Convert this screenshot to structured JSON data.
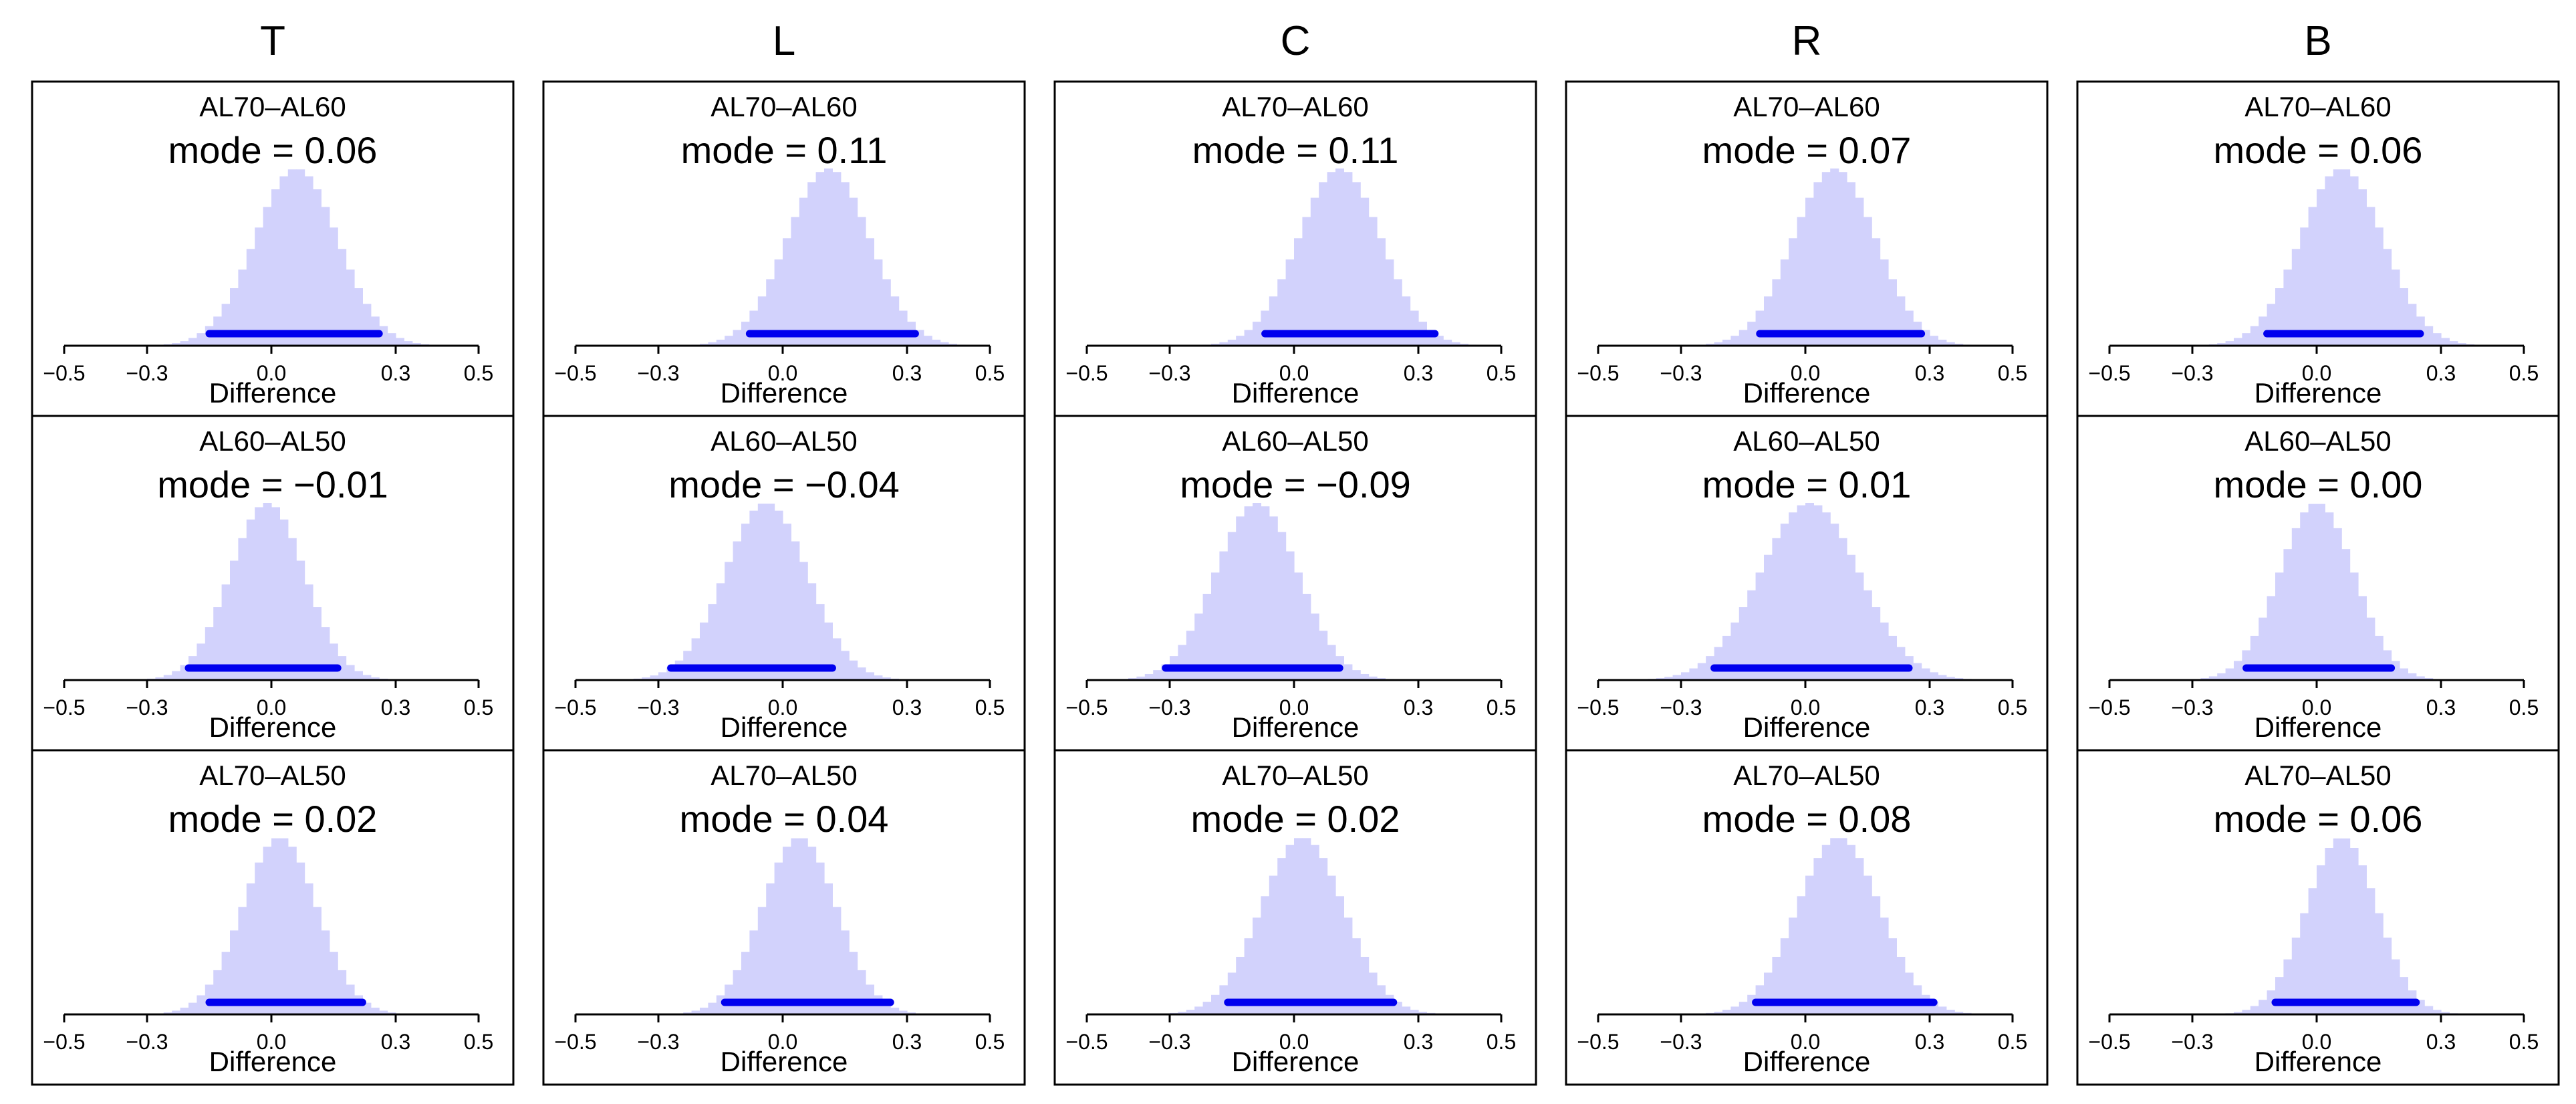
{
  "figure": {
    "columns": [
      "T",
      "L",
      "C",
      "R",
      "B"
    ],
    "rows": [
      "AL70–AL60",
      "AL60–AL50",
      "AL70–AL50"
    ]
  },
  "chart_data": [
    {
      "type": "bar",
      "column": "T",
      "comparison": "AL70–AL60",
      "mode_label": "mode = 0.06",
      "mode": 0.06,
      "interval": [
        -0.15,
        0.26
      ],
      "xlabel": "Difference",
      "xlim": [
        -0.5,
        0.5
      ],
      "xticks": [
        "−0.5",
        "−0.3",
        "0.0",
        "0.3",
        "0.5"
      ],
      "tick_values": [
        -0.5,
        -0.3,
        0.0,
        0.3,
        0.5
      ],
      "sd": 0.1
    },
    {
      "type": "bar",
      "column": "L",
      "comparison": "AL70–AL60",
      "mode_label": "mode = 0.11",
      "mode": 0.11,
      "interval": [
        -0.08,
        0.32
      ],
      "xlabel": "Difference",
      "xlim": [
        -0.5,
        0.5
      ],
      "xticks": [
        "−0.5",
        "−0.3",
        "0.0",
        "0.3",
        "0.5"
      ],
      "tick_values": [
        -0.5,
        -0.3,
        0.0,
        0.3,
        0.5
      ],
      "sd": 0.1
    },
    {
      "type": "bar",
      "column": "C",
      "comparison": "AL70–AL60",
      "mode_label": "mode = 0.11",
      "mode": 0.11,
      "interval": [
        -0.07,
        0.34
      ],
      "xlabel": "Difference",
      "xlim": [
        -0.5,
        0.5
      ],
      "xticks": [
        "−0.5",
        "−0.3",
        "0.0",
        "0.3",
        "0.5"
      ],
      "tick_values": [
        -0.5,
        -0.3,
        0.0,
        0.3,
        0.5
      ],
      "sd": 0.1
    },
    {
      "type": "bar",
      "column": "R",
      "comparison": "AL70–AL60",
      "mode_label": "mode = 0.07",
      "mode": 0.07,
      "interval": [
        -0.11,
        0.28
      ],
      "xlabel": "Difference",
      "xlim": [
        -0.5,
        0.5
      ],
      "xticks": [
        "−0.5",
        "−0.3",
        "0.0",
        "0.3",
        "0.5"
      ],
      "tick_values": [
        -0.5,
        -0.3,
        0.0,
        0.3,
        0.5
      ],
      "sd": 0.1
    },
    {
      "type": "bar",
      "column": "B",
      "comparison": "AL70–AL60",
      "mode_label": "mode = 0.06",
      "mode": 0.06,
      "interval": [
        -0.12,
        0.25
      ],
      "xlabel": "Difference",
      "xlim": [
        -0.5,
        0.5
      ],
      "xticks": [
        "−0.5",
        "−0.3",
        "0.0",
        "0.3",
        "0.5"
      ],
      "tick_values": [
        -0.5,
        -0.3,
        0.0,
        0.3,
        0.5
      ],
      "sd": 0.1
    },
    {
      "type": "bar",
      "column": "T",
      "comparison": "AL60–AL50",
      "mode_label": "mode = −0.01",
      "mode": -0.01,
      "interval": [
        -0.2,
        0.16
      ],
      "xlabel": "Difference",
      "xlim": [
        -0.5,
        0.5
      ],
      "xticks": [
        "−0.5",
        "−0.3",
        "0.0",
        "0.3",
        "0.5"
      ],
      "tick_values": [
        -0.5,
        -0.3,
        0.0,
        0.3,
        0.5
      ],
      "sd": 0.09
    },
    {
      "type": "bar",
      "column": "L",
      "comparison": "AL60–AL50",
      "mode_label": "mode = −0.04",
      "mode": -0.04,
      "interval": [
        -0.27,
        0.12
      ],
      "xlabel": "Difference",
      "xlim": [
        -0.5,
        0.5
      ],
      "xticks": [
        "−0.5",
        "−0.3",
        "0.0",
        "0.3",
        "0.5"
      ],
      "tick_values": [
        -0.5,
        -0.3,
        0.0,
        0.3,
        0.5
      ],
      "sd": 0.1
    },
    {
      "type": "bar",
      "column": "C",
      "comparison": "AL60–AL50",
      "mode_label": "mode = −0.09",
      "mode": -0.09,
      "interval": [
        -0.31,
        0.11
      ],
      "xlabel": "Difference",
      "xlim": [
        -0.5,
        0.5
      ],
      "xticks": [
        "−0.5",
        "−0.3",
        "0.0",
        "0.3",
        "0.5"
      ],
      "tick_values": [
        -0.5,
        -0.3,
        0.0,
        0.3,
        0.5
      ],
      "sd": 0.1
    },
    {
      "type": "bar",
      "column": "R",
      "comparison": "AL60–AL50",
      "mode_label": "mode = 0.01",
      "mode": 0.01,
      "interval": [
        -0.22,
        0.25
      ],
      "xlabel": "Difference",
      "xlim": [
        -0.5,
        0.5
      ],
      "xticks": [
        "−0.5",
        "−0.3",
        "0.0",
        "0.3",
        "0.5"
      ],
      "tick_values": [
        -0.5,
        -0.3,
        0.0,
        0.3,
        0.5
      ],
      "sd": 0.12
    },
    {
      "type": "bar",
      "column": "B",
      "comparison": "AL60–AL50",
      "mode_label": "mode = 0.00",
      "mode": 0.0,
      "interval": [
        -0.17,
        0.18
      ],
      "xlabel": "Difference",
      "xlim": [
        -0.5,
        0.5
      ],
      "xticks": [
        "−0.5",
        "−0.3",
        "0.0",
        "0.3",
        "0.5"
      ],
      "tick_values": [
        -0.5,
        -0.3,
        0.0,
        0.3,
        0.5
      ],
      "sd": 0.09
    },
    {
      "type": "bar",
      "column": "T",
      "comparison": "AL70–AL50",
      "mode_label": "mode = 0.02",
      "mode": 0.02,
      "interval": [
        -0.15,
        0.22
      ],
      "xlabel": "Difference",
      "xlim": [
        -0.5,
        0.5
      ],
      "xticks": [
        "−0.5",
        "−0.3",
        "0.0",
        "0.3",
        "0.5"
      ],
      "tick_values": [
        -0.5,
        -0.3,
        0.0,
        0.3,
        0.5
      ],
      "sd": 0.09
    },
    {
      "type": "bar",
      "column": "L",
      "comparison": "AL70–AL50",
      "mode_label": "mode = 0.04",
      "mode": 0.04,
      "interval": [
        -0.14,
        0.26
      ],
      "xlabel": "Difference",
      "xlim": [
        -0.5,
        0.5
      ],
      "xticks": [
        "−0.5",
        "−0.3",
        "0.0",
        "0.3",
        "0.5"
      ],
      "tick_values": [
        -0.5,
        -0.3,
        0.0,
        0.3,
        0.5
      ],
      "sd": 0.09
    },
    {
      "type": "bar",
      "column": "C",
      "comparison": "AL70–AL50",
      "mode_label": "mode = 0.02",
      "mode": 0.02,
      "interval": [
        -0.16,
        0.24
      ],
      "xlabel": "Difference",
      "xlim": [
        -0.5,
        0.5
      ],
      "xticks": [
        "−0.5",
        "−0.3",
        "0.0",
        "0.3",
        "0.5"
      ],
      "tick_values": [
        -0.5,
        -0.3,
        0.0,
        0.3,
        0.5
      ],
      "sd": 0.1
    },
    {
      "type": "bar",
      "column": "R",
      "comparison": "AL70–AL50",
      "mode_label": "mode = 0.08",
      "mode": 0.08,
      "interval": [
        -0.12,
        0.31
      ],
      "xlabel": "Difference",
      "xlim": [
        -0.5,
        0.5
      ],
      "xticks": [
        "−0.5",
        "−0.3",
        "0.0",
        "0.3",
        "0.5"
      ],
      "tick_values": [
        -0.5,
        -0.3,
        0.0,
        0.3,
        0.5
      ],
      "sd": 0.1
    },
    {
      "type": "bar",
      "column": "B",
      "comparison": "AL70–AL50",
      "mode_label": "mode = 0.06",
      "mode": 0.06,
      "interval": [
        -0.1,
        0.24
      ],
      "xlabel": "Difference",
      "xlim": [
        -0.5,
        0.5
      ],
      "xticks": [
        "−0.5",
        "−0.3",
        "0.0",
        "0.3",
        "0.5"
      ],
      "tick_values": [
        -0.5,
        -0.3,
        0.0,
        0.3,
        0.5
      ],
      "sd": 0.085
    }
  ],
  "colors": {
    "hist_fill": "#d2d2fc",
    "interval": "#0000ee",
    "axis": "#000000"
  }
}
